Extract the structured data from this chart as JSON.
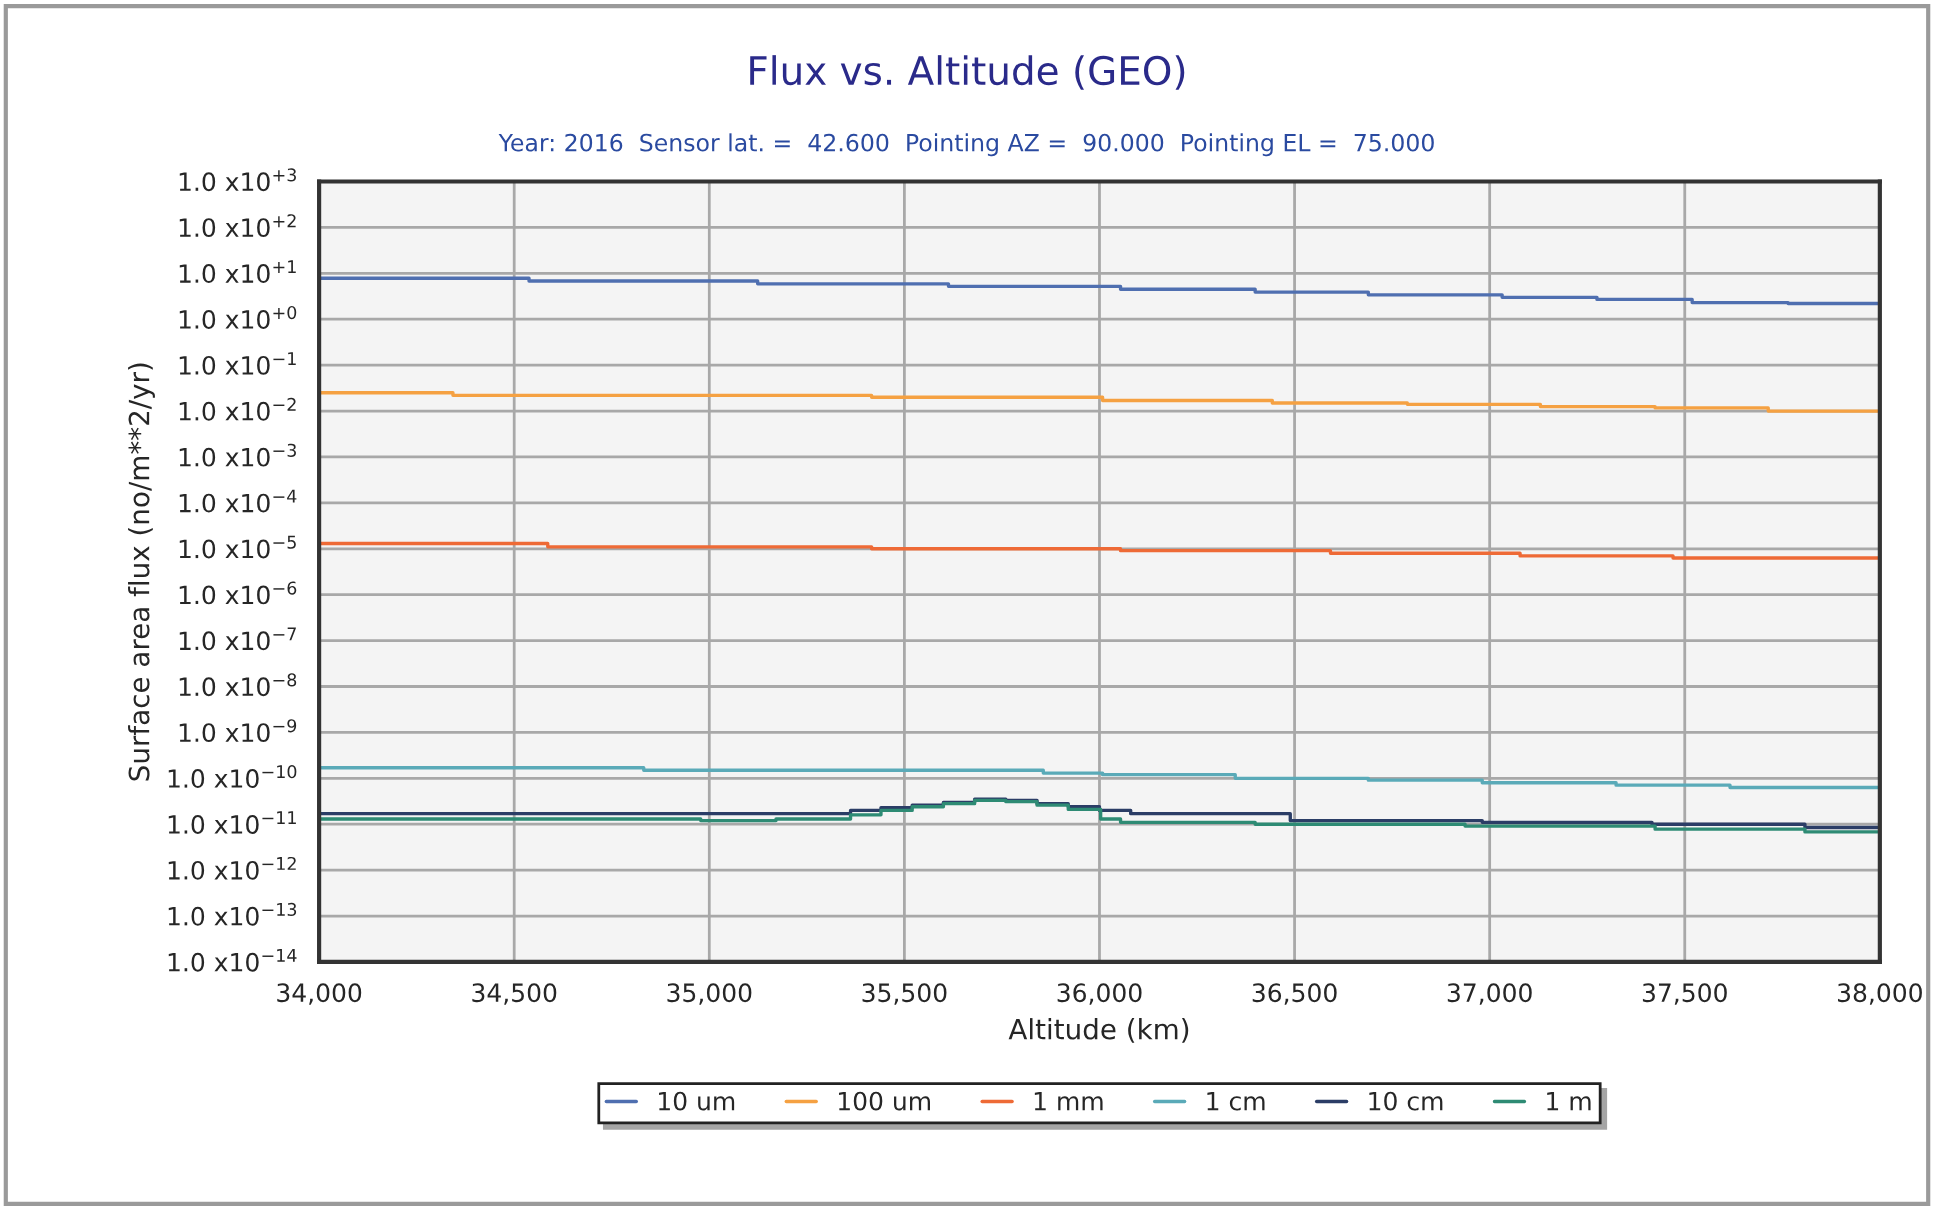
{
  "chart_data": {
    "type": "step",
    "title": "Flux vs. Altitude (GEO)",
    "subtitle": "Year: 2016  Sensor lat. =  42.600  Pointing AZ =  90.000  Pointing EL =  75.000",
    "xlabel": "Altitude (km)",
    "ylabel": "Surface area flux (no/m**2/yr)",
    "log": "y",
    "xlim": [
      34000,
      38000
    ],
    "xticks": [
      {
        "value": 34000,
        "label": "34,000"
      },
      {
        "value": 34500,
        "label": "34,500"
      },
      {
        "value": 35000,
        "label": "35,000"
      },
      {
        "value": 35500,
        "label": "35,500"
      },
      {
        "value": 36000,
        "label": "36,000"
      },
      {
        "value": 36500,
        "label": "36,500"
      },
      {
        "value": 37000,
        "label": "37,000"
      },
      {
        "value": 37500,
        "label": "37,500"
      },
      {
        "value": 38000,
        "label": "38,000"
      }
    ],
    "ylim": [
      1e-14,
      1000
    ],
    "yticks": [
      {
        "value": 1000,
        "label": "1.0 x10$^{+3}$"
      },
      {
        "value": 100,
        "label": "1.0 x10$^{+2}$"
      },
      {
        "value": 10,
        "label": "1.0 x10$^{+1}$"
      },
      {
        "value": 1,
        "label": "1.0 x10$^{+0}$"
      },
      {
        "value": 0.1,
        "label": "1.0 x10$^{−1}$"
      },
      {
        "value": 0.01,
        "label": "1.0 x10$^{−2}$"
      },
      {
        "value": 0.001,
        "label": "1.0 x10$^{−3}$"
      },
      {
        "value": 0.0001,
        "label": "1.0 x10$^{−4}$"
      },
      {
        "value": 1e-05,
        "label": "1.0 x10$^{−5}$"
      },
      {
        "value": 1e-06,
        "label": "1.0 x10$^{−6}$"
      },
      {
        "value": 1e-07,
        "label": "1.0 x10$^{−7}$"
      },
      {
        "value": 1e-08,
        "label": "1.0 x10$^{−8}$"
      },
      {
        "value": 1e-09,
        "label": "1.0 x10$^{−9}$"
      },
      {
        "value": 1e-10,
        "label": "1.0 x10$^{−10}$"
      },
      {
        "value": 1e-11,
        "label": "1.0 x10$^{−11}$"
      },
      {
        "value": 1e-12,
        "label": "1.0 x10$^{−12}$"
      },
      {
        "value": 1e-13,
        "label": "1.0 x10$^{−13}$"
      },
      {
        "value": 1e-14,
        "label": "1.0 x10$^{−14}$"
      }
    ],
    "grid": true,
    "legend": "bottom",
    "series": [
      {
        "name": "10 um",
        "color": "#4f6fb0",
        "x": [
          34000,
          34538,
          35124,
          35613,
          36054,
          36399,
          36689,
          37032,
          37275,
          37519,
          37765,
          38000
        ],
        "values": [
          7.8,
          6.8,
          5.9,
          5.2,
          4.5,
          3.9,
          3.4,
          3.0,
          2.7,
          2.3,
          2.2,
          2.2
        ]
      },
      {
        "name": "100 um",
        "color": "#f5a142",
        "x": [
          34000,
          34343,
          35416,
          36008,
          36443,
          36789,
          37130,
          37424,
          37714,
          38000
        ],
        "values": [
          0.025,
          0.022,
          0.02,
          0.017,
          0.015,
          0.014,
          0.0125,
          0.0117,
          0.01,
          0.01
        ]
      },
      {
        "name": "1 mm",
        "color": "#ee6a36",
        "x": [
          34000,
          34586,
          35416,
          36054,
          36592,
          37078,
          37470,
          38000
        ],
        "values": [
          1.3e-05,
          1.1e-05,
          1e-05,
          9.1e-06,
          8e-06,
          7e-06,
          6.3e-06,
          6.3e-06
        ]
      },
      {
        "name": "1 cm",
        "color": "#5aaab8",
        "x": [
          34000,
          34832,
          35856,
          36008,
          36348,
          36689,
          36981,
          37324,
          37616,
          38000
        ],
        "values": [
          1.7e-10,
          1.5e-10,
          1.3e-10,
          1.2e-10,
          1e-10,
          9.1e-11,
          8e-11,
          7.1e-11,
          6.3e-11,
          6.3e-11
        ]
      },
      {
        "name": "10 cm",
        "color": "#2b3d66",
        "x": [
          34000,
          35362,
          35440,
          35520,
          35600,
          35680,
          35760,
          35840,
          35920,
          36000,
          36080,
          36489,
          36981,
          37416,
          37808,
          38000
        ],
        "values": [
          1.7e-11,
          2e-11,
          2.3e-11,
          2.6e-11,
          3e-11,
          3.5e-11,
          3.3e-11,
          2.8e-11,
          2.4e-11,
          2e-11,
          1.7e-11,
          1.2e-11,
          1.1e-11,
          1e-11,
          8.5e-12,
          8.5e-12
        ]
      },
      {
        "name": "1 m",
        "color": "#2e8b74",
        "x": [
          34000,
          34978,
          35171,
          35362,
          35440,
          35520,
          35600,
          35680,
          35760,
          35840,
          35920,
          36003,
          36054,
          36399,
          36937,
          37424,
          37808,
          38000
        ],
        "values": [
          1.3e-11,
          1.2e-11,
          1.3e-11,
          1.6e-11,
          2e-11,
          2.4e-11,
          2.8e-11,
          3.3e-11,
          3.1e-11,
          2.6e-11,
          2.1e-11,
          1.3e-11,
          1.1e-11,
          1e-11,
          9.1e-12,
          7.8e-12,
          6.8e-12,
          6.8e-12
        ]
      }
    ]
  }
}
